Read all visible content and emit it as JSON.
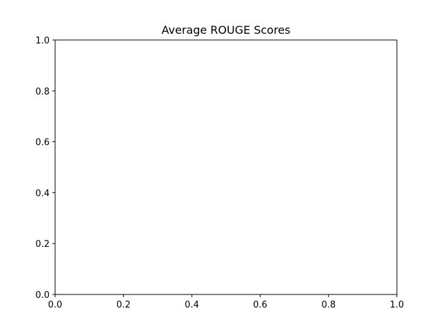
{
  "chart_data": {
    "type": "line",
    "title": "Average ROUGE Scores",
    "xlabel": "",
    "ylabel": "",
    "xlim": [
      0.0,
      1.0
    ],
    "ylim": [
      0.0,
      1.0
    ],
    "x_ticks": [
      0.0,
      0.2,
      0.4,
      0.6,
      0.8,
      1.0
    ],
    "y_ticks": [
      0.0,
      0.2,
      0.4,
      0.6,
      0.8,
      1.0
    ],
    "x_tick_labels": [
      "0.0",
      "0.2",
      "0.4",
      "0.6",
      "0.8",
      "1.0"
    ],
    "y_tick_labels": [
      "0.0",
      "0.2",
      "0.4",
      "0.6",
      "0.8",
      "1.0"
    ],
    "series": [],
    "grid": false,
    "legend": "none"
  }
}
